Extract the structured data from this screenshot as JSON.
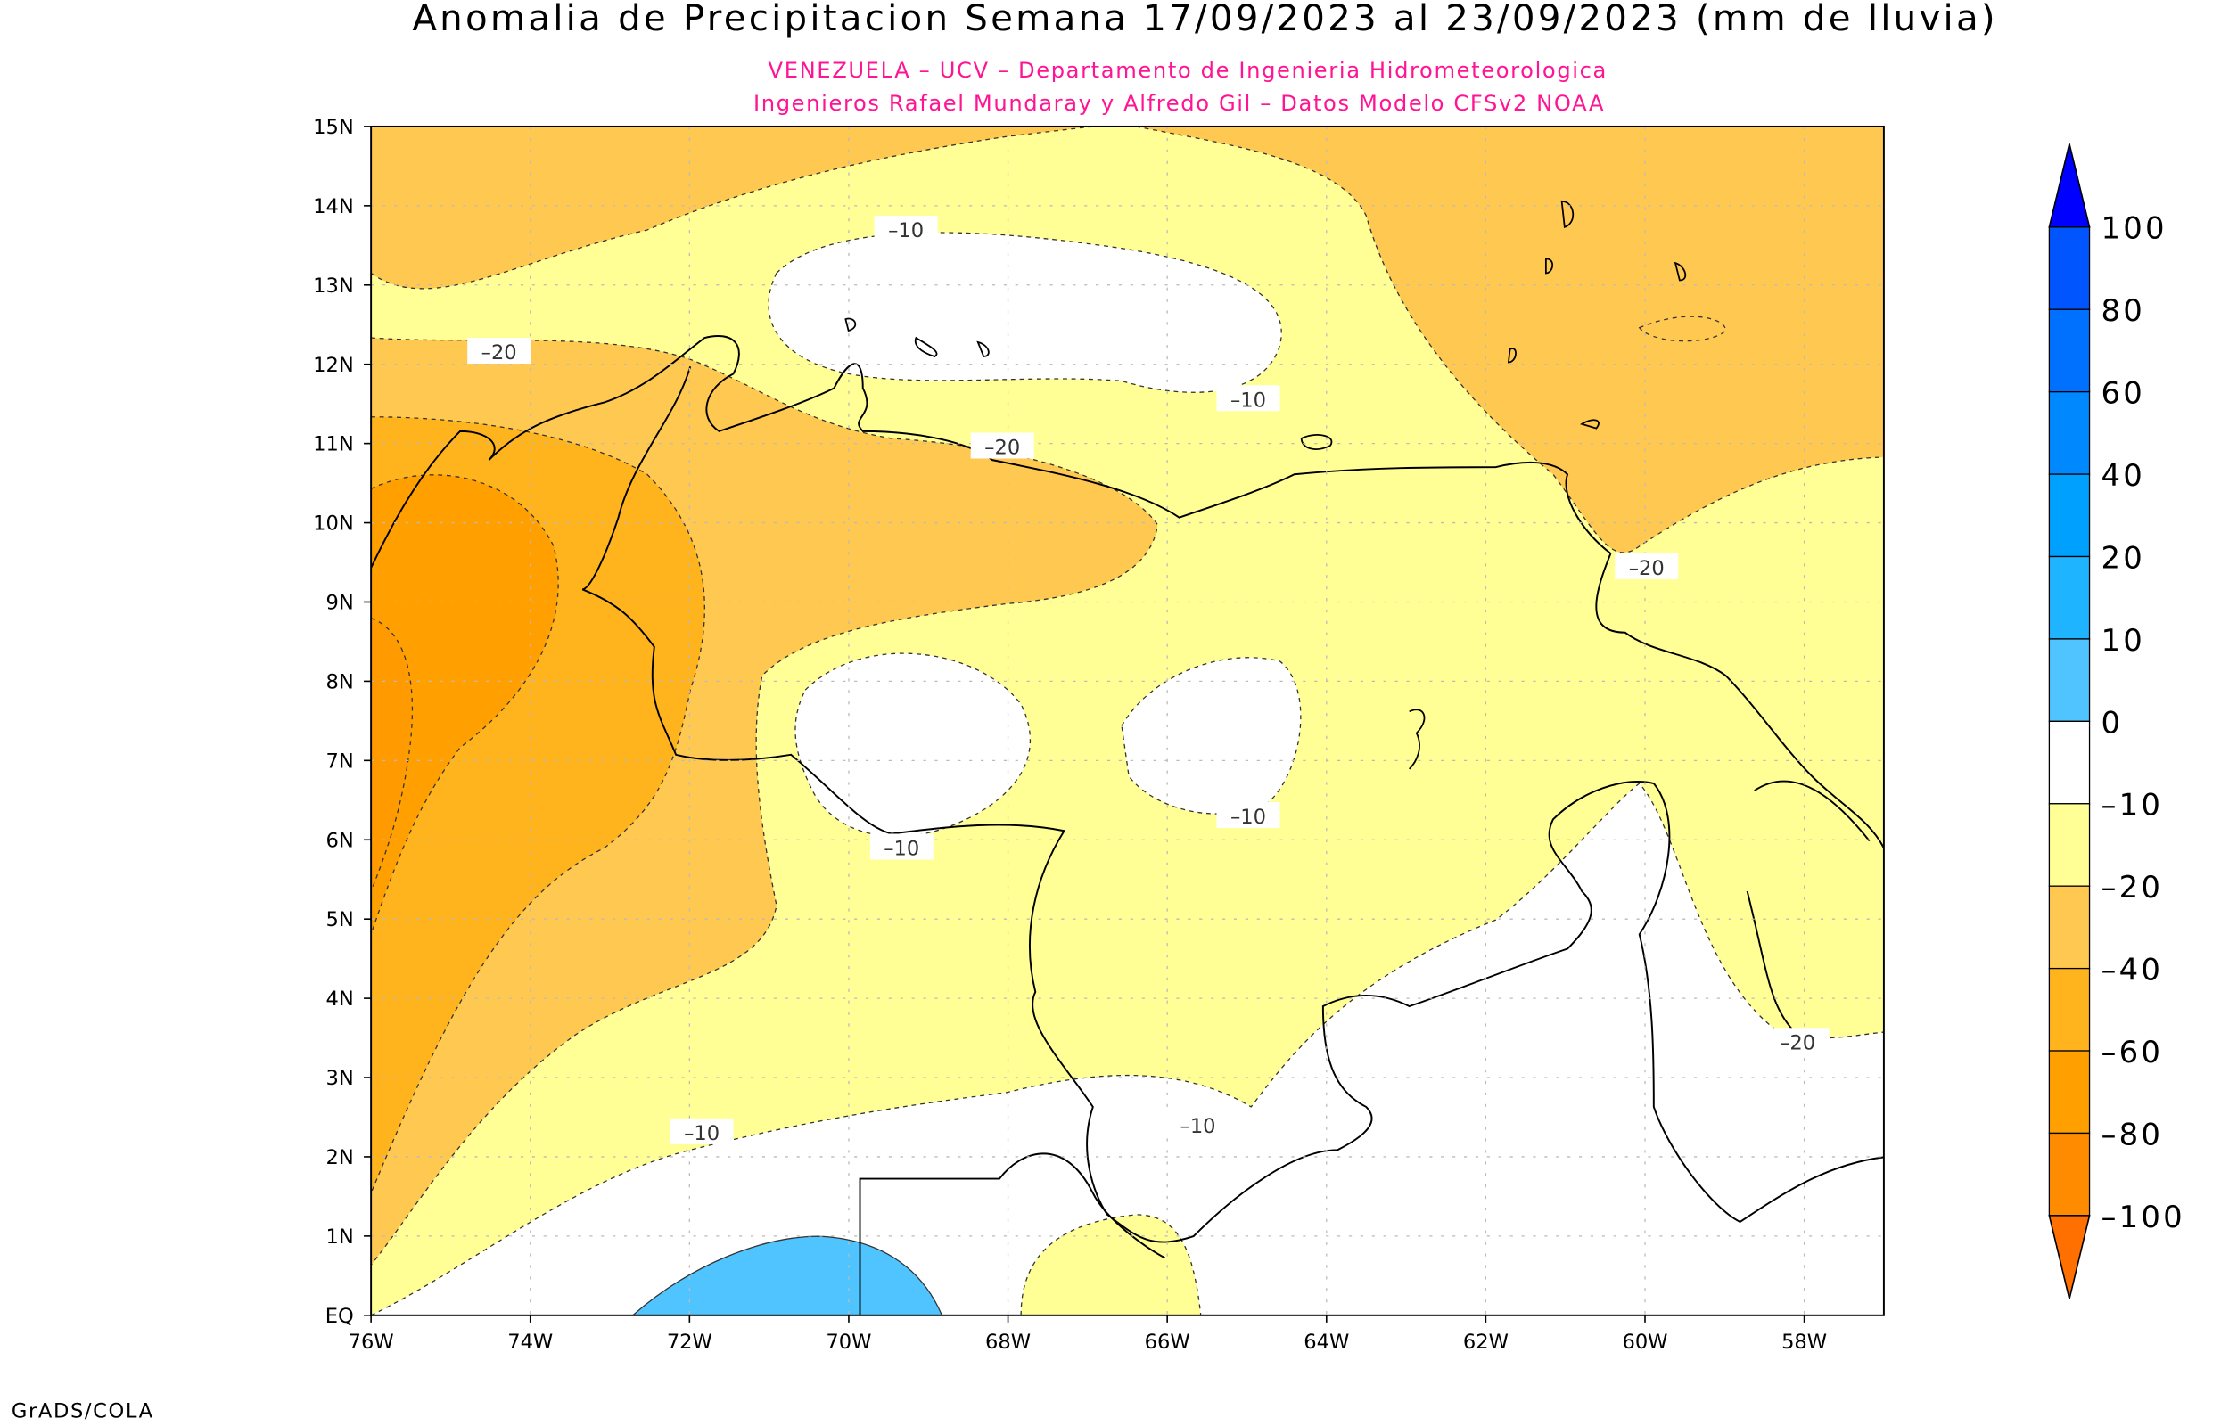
{
  "title": "Anomalia de Precipitacion Semana 17/09/2023 al 23/09/2023 (mm de lluvia)",
  "subtitle_1": "VENEZUELA – UCV – Departamento de Ingenieria Hidrometeorologica",
  "subtitle_2": "Ingenieros Rafael Mundaray y Alfredo Gil – Datos Modelo CFSv2 NOAA",
  "credit": "GrADS/COLA",
  "subtitle_color": "#ff1493",
  "map": {
    "lon_range": [
      -76,
      -57
    ],
    "lat_range": [
      0,
      15
    ],
    "x_ticks": [
      "76W",
      "74W",
      "72W",
      "70W",
      "68W",
      "66W",
      "64W",
      "62W",
      "60W",
      "58W"
    ],
    "y_ticks": [
      "EQ",
      "1N",
      "2N",
      "3N",
      "4N",
      "5N",
      "6N",
      "7N",
      "8N",
      "9N",
      "10N",
      "11N",
      "12N",
      "13N",
      "14N",
      "15N"
    ],
    "grid": true,
    "contour_labels": [
      "-10",
      "-20",
      "-10",
      "-20",
      "-20",
      "-10",
      "-10",
      "-20",
      "-10",
      "-10",
      "-10",
      "-10"
    ]
  },
  "colorbar": {
    "labels": [
      "100",
      "80",
      "60",
      "40",
      "20",
      "10",
      "0",
      "-10",
      "-20",
      "-40",
      "-60",
      "-80",
      "-100"
    ],
    "colors": [
      "#0000ff",
      "#0055ff",
      "#0070ff",
      "#0088ff",
      "#00a0ff",
      "#1eb4ff",
      "#4fc4ff",
      "#ffffff",
      "#ffff96",
      "#ffc850",
      "#ffb41e",
      "#ffa000",
      "#ff8c00",
      "#ff7000"
    ]
  }
}
